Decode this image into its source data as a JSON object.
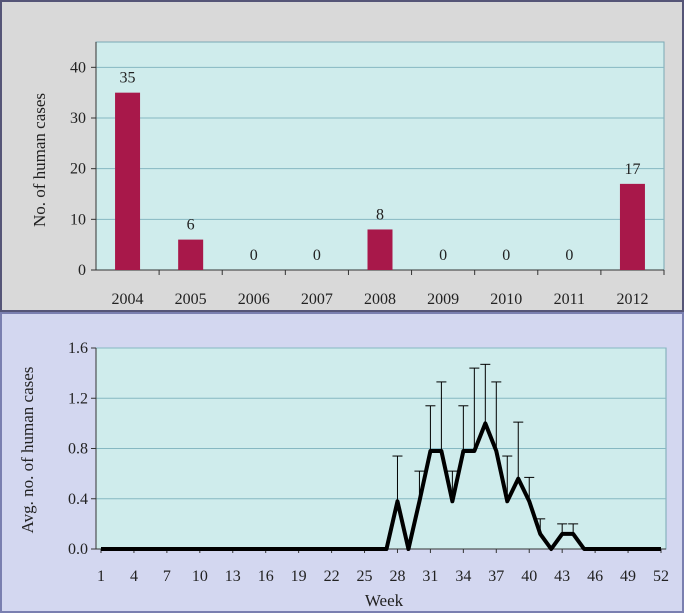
{
  "colors": {
    "bar": "#A8184A",
    "plot_bg": "#CFECEC",
    "line": "#000000",
    "grid": "#86b8c2"
  },
  "chart_data": [
    {
      "type": "bar",
      "title": "",
      "xlabel": "",
      "ylabel": "No. of human cases",
      "ylim": [
        0,
        45
      ],
      "yticks": [
        "0",
        "10",
        "20",
        "30",
        "40"
      ],
      "grid": true,
      "categories": [
        "2004",
        "2005",
        "2006",
        "2007",
        "2008",
        "2009",
        "2010",
        "2011",
        "2012"
      ],
      "values": [
        35,
        6,
        0,
        0,
        8,
        0,
        0,
        0,
        17
      ],
      "data_labels": [
        "35",
        "6",
        "0",
        "0",
        "8",
        "0",
        "0",
        "0",
        "17"
      ]
    },
    {
      "type": "line",
      "title": "",
      "xlabel": "Week",
      "ylabel": "Avg. no. of human cases",
      "ylim": [
        0,
        1.6
      ],
      "yticks": [
        "0.0",
        "0.4",
        "0.8",
        "1.2",
        "1.6"
      ],
      "xticks": [
        "1",
        "4",
        "7",
        "10",
        "13",
        "16",
        "19",
        "22",
        "25",
        "28",
        "31",
        "34",
        "37",
        "40",
        "43",
        "46",
        "49",
        "52"
      ],
      "grid": true,
      "error_bars": "upper",
      "x": [
        1,
        2,
        3,
        4,
        5,
        6,
        7,
        8,
        9,
        10,
        11,
        12,
        13,
        14,
        15,
        16,
        17,
        18,
        19,
        20,
        21,
        22,
        23,
        24,
        25,
        26,
        27,
        28,
        29,
        30,
        31,
        32,
        33,
        34,
        35,
        36,
        37,
        38,
        39,
        40,
        41,
        42,
        43,
        44,
        45,
        46,
        47,
        48,
        49,
        50,
        51,
        52
      ],
      "y": [
        0,
        0,
        0,
        0,
        0,
        0,
        0,
        0,
        0,
        0,
        0,
        0,
        0,
        0,
        0,
        0,
        0,
        0,
        0,
        0,
        0,
        0,
        0,
        0,
        0,
        0,
        0,
        0.38,
        0,
        0.38,
        0.78,
        0.78,
        0.38,
        0.78,
        0.78,
        1.0,
        0.78,
        0.38,
        0.56,
        0.38,
        0.12,
        0,
        0.12,
        0.12,
        0,
        0,
        0,
        0,
        0,
        0,
        0,
        0
      ],
      "err_upper": [
        0,
        0,
        0,
        0,
        0,
        0,
        0,
        0,
        0,
        0,
        0,
        0,
        0,
        0,
        0,
        0,
        0,
        0,
        0,
        0,
        0,
        0,
        0,
        0,
        0,
        0,
        0,
        0.36,
        0,
        0.24,
        0.36,
        0.55,
        0.24,
        0.36,
        0.66,
        0.47,
        0.55,
        0.36,
        0.45,
        0.19,
        0.12,
        0,
        0.08,
        0.08,
        0,
        0,
        0,
        0,
        0,
        0,
        0,
        0
      ]
    }
  ]
}
